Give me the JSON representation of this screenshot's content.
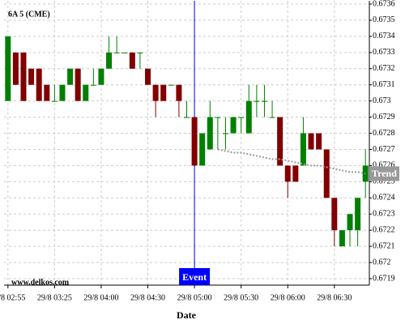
{
  "chart_data": {
    "type": "candlestick",
    "title": "6A 5 (CME)",
    "watermark": "www.delkos.com",
    "xlabel": "Date",
    "categories": [
      "29/8 02:55",
      null,
      null,
      null,
      null,
      null,
      "29/8 03:25",
      null,
      null,
      null,
      null,
      null,
      "29/8 04:00",
      null,
      null,
      null,
      null,
      null,
      "29/8 04:30",
      null,
      null,
      null,
      null,
      null,
      "29/8 05:00",
      null,
      null,
      null,
      null,
      null,
      "29/8 05:30",
      null,
      null,
      null,
      null,
      null,
      "29/8 06:00",
      null,
      null,
      null,
      null,
      null,
      "29/8 06:30",
      null,
      null,
      null,
      null
    ],
    "open": [
      0.673,
      0.6733,
      0.6733,
      0.6732,
      0.6732,
      0.6731,
      0.673,
      0.673,
      0.6731,
      0.6732,
      0.673,
      0.6731,
      0.6731,
      0.6732,
      0.6733,
      0.6733,
      0.6733,
      0.6733,
      0.6732,
      0.6731,
      0.6731,
      0.6731,
      0.6731,
      0.6729,
      0.6729,
      0.6726,
      0.6727,
      0.6729,
      0.6728,
      0.6728,
      0.6729,
      0.6728,
      0.673,
      0.673,
      0.6729,
      0.6729,
      0.6726,
      0.6726,
      0.6726,
      0.6728,
      0.6728,
      0.6727,
      0.6724,
      0.6721,
      0.6722,
      0.6722,
      0.6725
    ],
    "high": [
      0.6734,
      0.6733,
      0.6733,
      0.6732,
      0.6732,
      0.6731,
      0.6731,
      0.6731,
      0.6732,
      0.6732,
      0.6731,
      0.6732,
      0.6732,
      0.6734,
      0.6734,
      0.6733,
      0.6733,
      0.6733,
      0.6732,
      0.6731,
      0.6731,
      0.6731,
      0.6731,
      0.673,
      0.6729,
      0.6728,
      0.673,
      0.6729,
      0.6729,
      0.6729,
      0.6729,
      0.6731,
      0.6731,
      0.6731,
      0.673,
      0.6729,
      0.6726,
      0.6726,
      0.6729,
      0.6728,
      0.6728,
      0.6727,
      0.6724,
      0.6722,
      0.6723,
      0.6724,
      0.6727
    ],
    "low": [
      0.673,
      0.6731,
      0.673,
      0.6731,
      0.673,
      0.673,
      0.673,
      0.673,
      0.6731,
      0.673,
      0.673,
      0.6731,
      0.6731,
      0.6732,
      0.6733,
      0.6733,
      0.6732,
      0.6732,
      0.6731,
      0.6729,
      0.673,
      0.6731,
      0.6729,
      0.6729,
      0.6726,
      0.6726,
      0.6727,
      0.6727,
      0.6727,
      0.6728,
      0.6728,
      0.6728,
      0.6729,
      0.6729,
      0.6729,
      0.6726,
      0.6724,
      0.6725,
      0.6726,
      0.6727,
      0.6727,
      0.6724,
      0.6721,
      0.6721,
      0.6721,
      0.6721,
      0.6724
    ],
    "close": [
      0.6734,
      0.6731,
      0.673,
      0.6731,
      0.673,
      0.673,
      0.673,
      0.6731,
      0.6732,
      0.673,
      0.6731,
      0.6731,
      0.6732,
      0.6733,
      0.6733,
      0.6733,
      0.6732,
      0.6733,
      0.6731,
      0.673,
      0.673,
      0.6731,
      0.673,
      0.6729,
      0.6726,
      0.6728,
      0.6729,
      0.6729,
      0.6728,
      0.6729,
      0.6729,
      0.673,
      0.673,
      0.673,
      0.6729,
      0.6726,
      0.6725,
      0.6725,
      0.6728,
      0.6727,
      0.6727,
      0.6724,
      0.6722,
      0.6722,
      0.6723,
      0.6724,
      0.6726
    ],
    "up_color": "#008000",
    "down_color": "#800000",
    "trend": {
      "label": "Trend",
      "color": "#999999",
      "values": [
        null,
        null,
        null,
        null,
        null,
        null,
        null,
        null,
        null,
        null,
        null,
        null,
        null,
        null,
        null,
        null,
        null,
        null,
        null,
        null,
        null,
        null,
        null,
        null,
        null,
        null,
        null,
        0.6727,
        0.67269,
        0.67268,
        0.67268,
        0.67267,
        0.67266,
        0.67265,
        0.67264,
        0.67264,
        0.67263,
        0.67262,
        0.67261,
        0.6726,
        0.6726,
        0.67259,
        0.67258,
        0.67257,
        0.67256,
        0.67256,
        0.67255
      ]
    },
    "event": {
      "label": "Event",
      "at": "29/8 05:00",
      "color": "#0000ff"
    },
    "ylim": [
      0.67186,
      0.67362
    ],
    "yticks": [
      0.6719,
      0.672,
      0.6721,
      0.6722,
      0.6723,
      0.6724,
      0.6725,
      0.6726,
      0.6727,
      0.6728,
      0.6729,
      0.673,
      0.6731,
      0.6732,
      0.6733,
      0.6734,
      0.6735,
      0.6736
    ],
    "grid": true
  }
}
